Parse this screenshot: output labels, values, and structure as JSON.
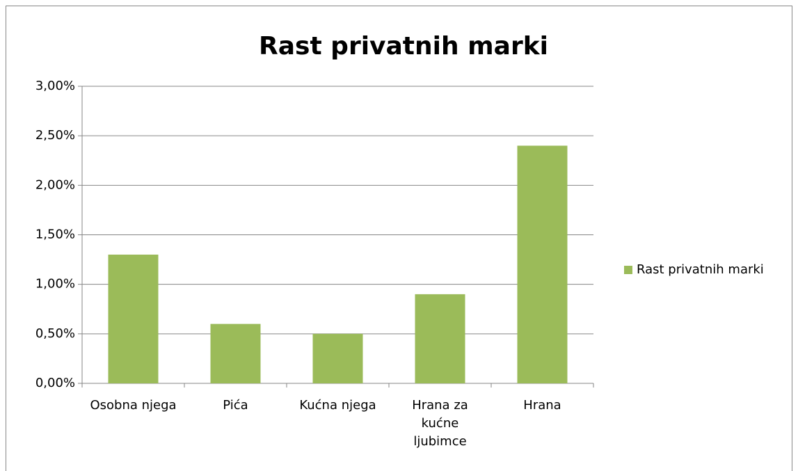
{
  "chart_data": {
    "type": "bar",
    "title": "Rast privatnih marki",
    "categories": [
      "Osobna njega",
      "Pića",
      "Kućna njega",
      "Hrana za kućne ljubimce",
      "Hrana"
    ],
    "series": [
      {
        "name": "Rast privatnih marki",
        "color": "#9bbb59",
        "values": [
          1.3,
          0.6,
          0.5,
          0.9,
          2.4
        ]
      }
    ],
    "ylim": [
      0,
      3
    ],
    "yticks": [
      {
        "value": 0,
        "label": "0,00%"
      },
      {
        "value": 0.5,
        "label": "0,50%"
      },
      {
        "value": 1,
        "label": "1,00%"
      },
      {
        "value": 1.5,
        "label": "1,50%"
      },
      {
        "value": 2,
        "label": "2,00%"
      },
      {
        "value": 2.5,
        "label": "2,50%"
      },
      {
        "value": 3,
        "label": "3,00%"
      }
    ],
    "grid": true,
    "legend": "right"
  }
}
